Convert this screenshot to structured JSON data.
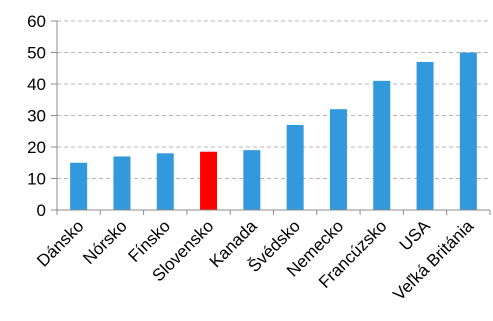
{
  "chart_data": {
    "type": "bar",
    "categories": [
      "Dánsko",
      "Nórsko",
      "Fínsko",
      "Slovensko",
      "Kanada",
      "Švédsko",
      "Nemecko",
      "Francúzsko",
      "USA",
      "Veľká Británia"
    ],
    "values": [
      15,
      17,
      18,
      18.5,
      19,
      27,
      32,
      41,
      47,
      50
    ],
    "highlight_category": "Slovensko",
    "ylim": [
      0,
      60
    ],
    "yticks": [
      0,
      10,
      20,
      30,
      40,
      50,
      60
    ],
    "grid": true,
    "grid_style": "dashed",
    "legend": "none",
    "title": "",
    "xlabel": "",
    "ylabel": "",
    "colors": {
      "bar": "#3399dd",
      "highlight": "#ff0000",
      "grid": "#b7b7b7",
      "axis": "#8c8c8c"
    }
  }
}
